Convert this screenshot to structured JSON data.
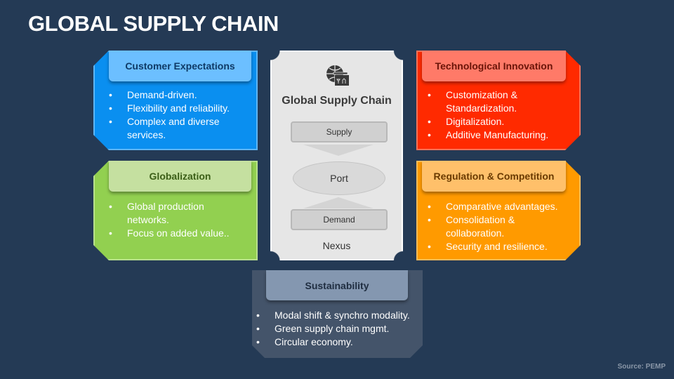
{
  "title": "GLOBAL SUPPLY CHAIN",
  "colors": {
    "background": "#243a55",
    "customer": "#0a8ff0",
    "globalization": "#92d050",
    "technology": "#ff2a00",
    "regulation": "#ff9a00",
    "sustainability": "#44546a"
  },
  "panels": {
    "customer": {
      "heading": "Customer Expectations",
      "bullets": [
        "Demand-driven.",
        "Flexibility and reliability.",
        "Complex and diverse services."
      ]
    },
    "globalization": {
      "heading": "Globalization",
      "bullets": [
        "Global production networks.",
        "Focus on added value.."
      ]
    },
    "technology": {
      "heading": "Technological Innovation",
      "bullets": [
        "Customization & Standardization.",
        "Digitalization.",
        "Additive Manufacturing."
      ]
    },
    "regulation": {
      "heading": "Regulation & Competition",
      "bullets": [
        "Comparative advantages.",
        "Consolidation & collaboration.",
        "Security and resilience."
      ]
    },
    "sustainability": {
      "heading": "Sustainability",
      "bullets": [
        "Modal shift & synchro modality.",
        "Green supply chain mgmt.",
        "Circular economy."
      ]
    }
  },
  "center": {
    "icon": "globe-cargo-icon",
    "title": "Global Supply Chain",
    "supply": "Supply",
    "port": "Port",
    "demand": "Demand",
    "footer": "Nexus"
  },
  "source": "Source: PEMP"
}
